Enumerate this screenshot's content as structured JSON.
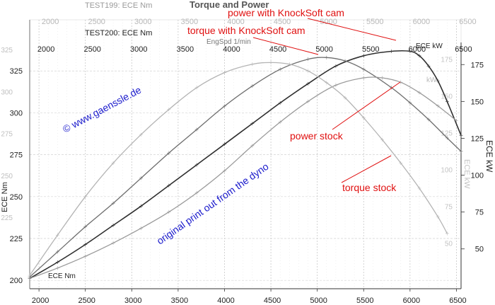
{
  "chart_data": {
    "type": "line",
    "title": "Torque and Power",
    "header_texts": {
      "test199": "TEST199: ECE Nm",
      "test200": "TEST200: ECE Nm",
      "engspd": "EngSpd 1/min"
    },
    "x_ticks": [
      2000,
      2500,
      3000,
      3500,
      4000,
      4500,
      5000,
      5500,
      6000,
      6500
    ],
    "x_ticks_faded": [
      2000,
      2500,
      3000,
      3500,
      4000,
      4500,
      5000,
      5500,
      6000,
      6500
    ],
    "xlim": [
      1900,
      6550
    ],
    "left_axis": {
      "label": "ECE Nm",
      "ticks": [
        200,
        225,
        250,
        275,
        300,
        325
      ],
      "faded_ticks": [
        325,
        300,
        275,
        250,
        225
      ],
      "ylim": [
        195,
        342
      ]
    },
    "right_axis": {
      "label": "ECE kW",
      "faded_label": "ECE kW",
      "ticks": [
        50,
        75,
        100,
        125,
        150,
        175
      ],
      "faded_ticks": [
        175,
        150,
        125,
        100,
        75,
        50
      ],
      "ylim": [
        23,
        190
      ]
    },
    "series": [
      {
        "name": "power with KnockSoft cam",
        "axis": "right",
        "color": "#2f2f2f",
        "x": [
          1900,
          2200,
          2500,
          2800,
          3100,
          3400,
          3700,
          4000,
          4300,
          4600,
          4900,
          5200,
          5500,
          5800,
          6000,
          6100,
          6200,
          6300,
          6400,
          6550
        ],
        "y": [
          30,
          41,
          53,
          66,
          79,
          93,
          107,
          121,
          135,
          149,
          162,
          174,
          181,
          184,
          184,
          181,
          174,
          164,
          150,
          127
        ]
      },
      {
        "name": "torque with KnockSoft cam",
        "axis": "left",
        "color": "#6e6e6e",
        "x": [
          1900,
          2200,
          2500,
          2800,
          3100,
          3400,
          3700,
          4000,
          4300,
          4600,
          4900,
          5100,
          5300,
          5500,
          5800,
          6000,
          6200,
          6400,
          6550
        ],
        "y": [
          202,
          217,
          232,
          246,
          261,
          276,
          290,
          304,
          316,
          326,
          332,
          333,
          331,
          326,
          315,
          306,
          296,
          285,
          277
        ]
      },
      {
        "name": "power stock",
        "axis": "right",
        "color": "#9a9a9a",
        "x": [
          1900,
          2200,
          2500,
          2800,
          3100,
          3400,
          3700,
          4000,
          4300,
          4600,
          4900,
          5200,
          5500,
          5700,
          5900,
          6100,
          6300,
          6500
        ],
        "y": [
          30,
          37,
          45,
          54,
          64,
          75,
          88,
          103,
          120,
          136,
          150,
          161,
          166,
          166,
          163,
          156,
          147,
          137
        ]
      },
      {
        "name": "torque stock",
        "axis": "left",
        "color": "#b4b4b4",
        "x": [
          1900,
          2200,
          2500,
          2800,
          3100,
          3400,
          3700,
          4000,
          4300,
          4500,
          4700,
          4900,
          5100,
          5300,
          5500,
          5700,
          5900,
          6100,
          6300,
          6400
        ],
        "y": [
          203,
          227,
          250,
          270,
          287,
          302,
          315,
          324,
          329,
          330,
          329,
          325,
          318,
          309,
          297,
          284,
          270,
          255,
          238,
          228
        ]
      }
    ],
    "annotations": {
      "power_cam": "power with KnockSoft cam",
      "torque_cam": "torque with KnockSoft cam",
      "power_stock": "power stock",
      "torque_stock": "torque stock",
      "watermark": "© www.gaenssle.de",
      "note": "original print out from the dyno",
      "ece_nm_inside": "ECE Nm",
      "ece_kw_top": "ECE kW",
      "ece_kw_faded": "kW"
    },
    "colors": {
      "annotation_red": "#e01010",
      "annotation_blue": "#1a1acc",
      "ink": "#222222",
      "faded_ink": "#bdbdbd",
      "grid": "#d0d0d0"
    },
    "grid": true
  }
}
